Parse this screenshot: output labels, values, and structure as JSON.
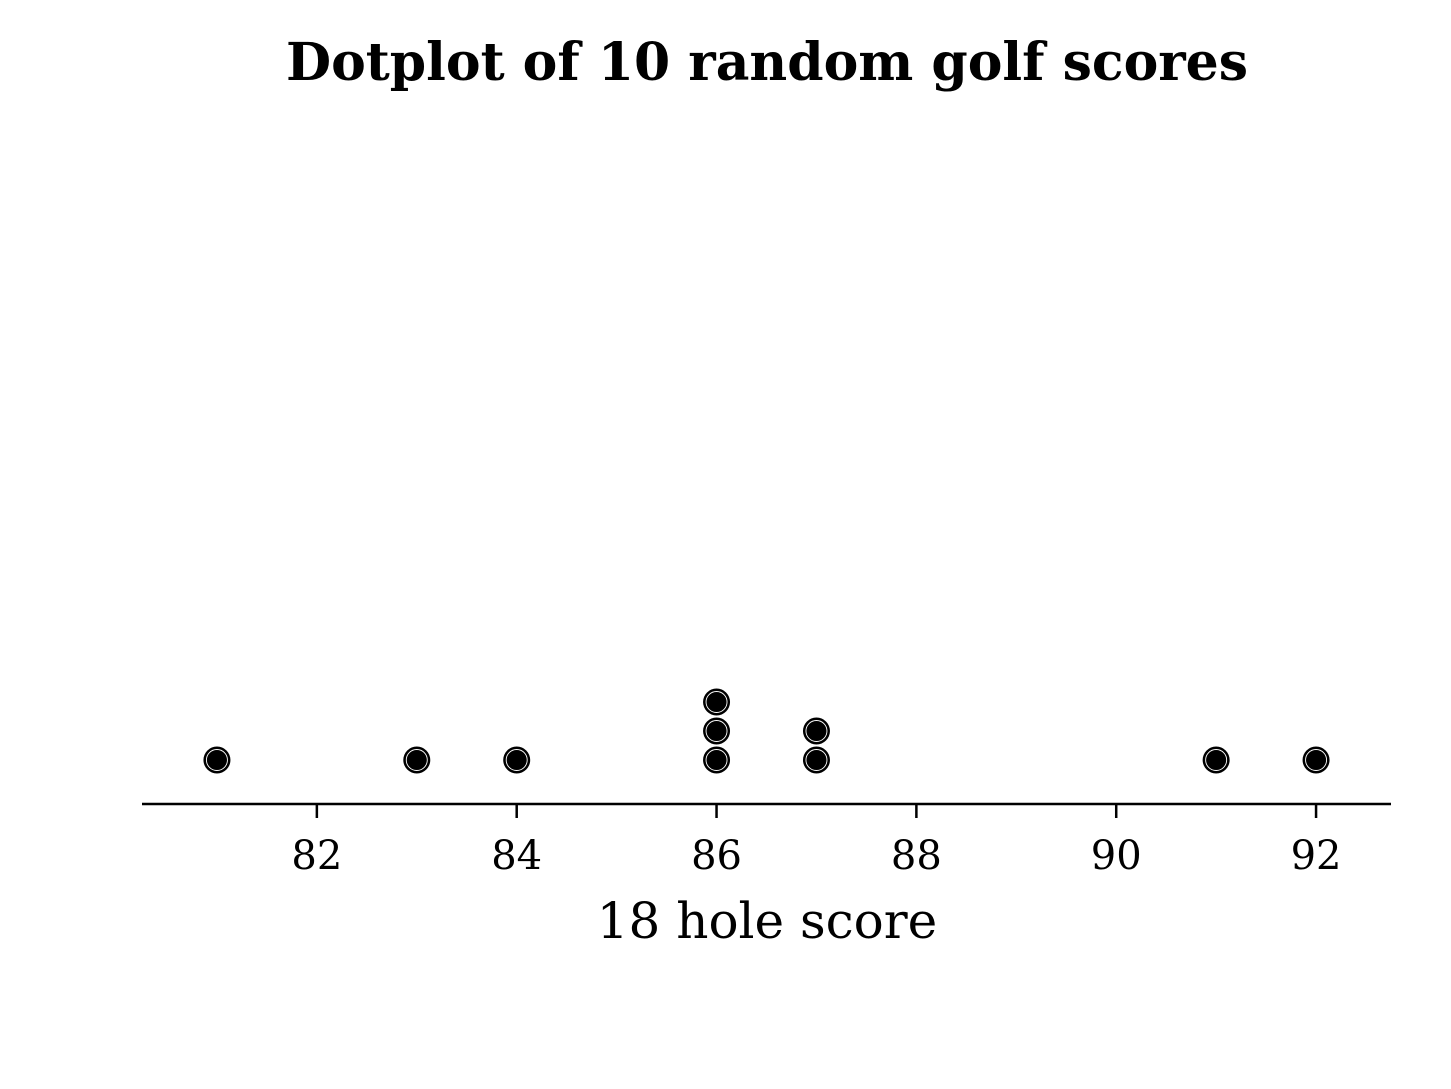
{
  "chart_data": {
    "type": "scatter",
    "subtype": "dotplot",
    "title": "Dotplot of 10 random golf scores",
    "xlabel": "18 hole score",
    "ylabel": "",
    "xlim": [
      80.25,
      92.75
    ],
    "xticks": [
      82,
      84,
      86,
      88,
      90,
      92
    ],
    "xtick_labels": [
      "82",
      "84",
      "86",
      "88",
      "90",
      "92"
    ],
    "values": [
      81,
      83,
      84,
      86,
      86,
      86,
      87,
      87,
      91,
      92
    ],
    "points": [
      {
        "x": 81,
        "count": 1
      },
      {
        "x": 83,
        "count": 1
      },
      {
        "x": 84,
        "count": 1
      },
      {
        "x": 86,
        "count": 3
      },
      {
        "x": 87,
        "count": 2
      },
      {
        "x": 91,
        "count": 1
      },
      {
        "x": 92,
        "count": 1
      }
    ],
    "grid": false,
    "legend": "none",
    "marker_color": "#000000"
  }
}
